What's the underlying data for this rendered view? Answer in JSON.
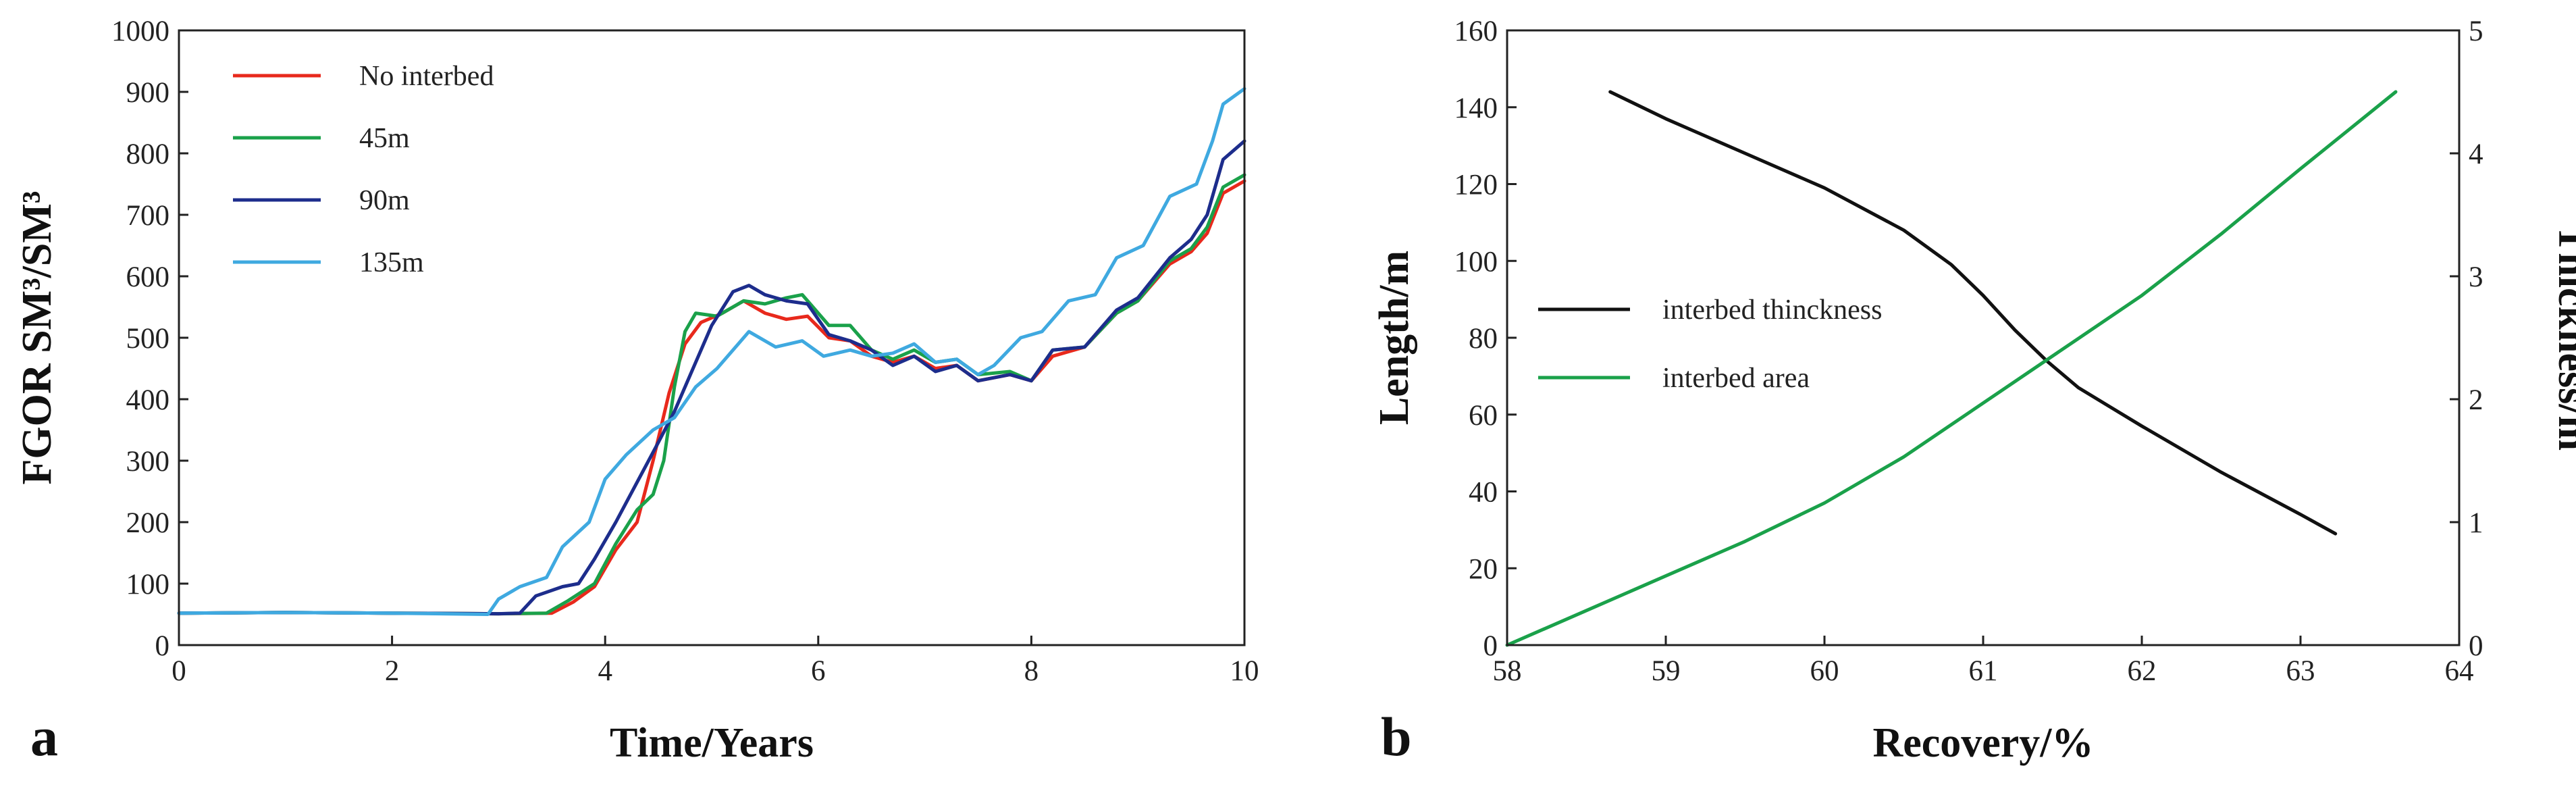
{
  "chart_data": [
    {
      "type": "line",
      "panel_label": "a",
      "xlabel": "Time/Years",
      "ylabel": "FGOR SM³/SM³",
      "xlim": [
        0,
        10
      ],
      "ylim": [
        0,
        1000
      ],
      "xticks": [
        "0",
        "2",
        "4",
        "6",
        "8",
        "10"
      ],
      "yticks": [
        "0",
        "100",
        "200",
        "300",
        "400",
        "500",
        "600",
        "700",
        "800",
        "900",
        "1000"
      ],
      "legend_position": "top-left",
      "series": [
        {
          "name": "No interbed",
          "color": "#e8291c",
          "points": [
            [
              0,
              52
            ],
            [
              1,
              53
            ],
            [
              2,
              52
            ],
            [
              3,
              51
            ],
            [
              3.5,
              52
            ],
            [
              3.7,
              70
            ],
            [
              3.9,
              95
            ],
            [
              4.1,
              155
            ],
            [
              4.3,
              200
            ],
            [
              4.45,
              300
            ],
            [
              4.6,
              410
            ],
            [
              4.75,
              490
            ],
            [
              4.9,
              525
            ],
            [
              5.1,
              540
            ],
            [
              5.3,
              560
            ],
            [
              5.5,
              540
            ],
            [
              5.7,
              530
            ],
            [
              5.9,
              535
            ],
            [
              6.1,
              500
            ],
            [
              6.3,
              495
            ],
            [
              6.5,
              470
            ],
            [
              6.7,
              460
            ],
            [
              6.9,
              470
            ],
            [
              7.1,
              450
            ],
            [
              7.3,
              455
            ],
            [
              7.5,
              430
            ],
            [
              7.8,
              440
            ],
            [
              8.0,
              430
            ],
            [
              8.2,
              470
            ],
            [
              8.5,
              485
            ],
            [
              8.8,
              540
            ],
            [
              9.0,
              560
            ],
            [
              9.3,
              620
            ],
            [
              9.5,
              640
            ],
            [
              9.65,
              670
            ],
            [
              9.8,
              735
            ],
            [
              10.0,
              755
            ]
          ]
        },
        {
          "name": "45m",
          "color": "#1aa14a",
          "points": [
            [
              0,
              52
            ],
            [
              1,
              53
            ],
            [
              2,
              52
            ],
            [
              3,
              51
            ],
            [
              3.45,
              52
            ],
            [
              3.65,
              72
            ],
            [
              3.9,
              100
            ],
            [
              4.1,
              165
            ],
            [
              4.3,
              220
            ],
            [
              4.45,
              245
            ],
            [
              4.55,
              300
            ],
            [
              4.65,
              420
            ],
            [
              4.75,
              510
            ],
            [
              4.85,
              540
            ],
            [
              5.05,
              535
            ],
            [
              5.3,
              560
            ],
            [
              5.5,
              555
            ],
            [
              5.7,
              565
            ],
            [
              5.85,
              570
            ],
            [
              6.1,
              520
            ],
            [
              6.3,
              520
            ],
            [
              6.5,
              480
            ],
            [
              6.7,
              465
            ],
            [
              6.9,
              480
            ],
            [
              7.1,
              460
            ],
            [
              7.3,
              465
            ],
            [
              7.5,
              440
            ],
            [
              7.8,
              445
            ],
            [
              8.0,
              430
            ],
            [
              8.2,
              480
            ],
            [
              8.5,
              485
            ],
            [
              8.8,
              540
            ],
            [
              9.0,
              560
            ],
            [
              9.3,
              625
            ],
            [
              9.5,
              645
            ],
            [
              9.65,
              680
            ],
            [
              9.8,
              745
            ],
            [
              10.0,
              765
            ]
          ]
        },
        {
          "name": "90m",
          "color": "#1d2d8c",
          "points": [
            [
              0,
              52
            ],
            [
              1,
              53
            ],
            [
              2,
              52
            ],
            [
              3,
              51
            ],
            [
              3.2,
              52
            ],
            [
              3.35,
              80
            ],
            [
              3.6,
              95
            ],
            [
              3.75,
              100
            ],
            [
              3.9,
              140
            ],
            [
              4.1,
              200
            ],
            [
              4.3,
              265
            ],
            [
              4.5,
              330
            ],
            [
              4.65,
              380
            ],
            [
              4.8,
              440
            ],
            [
              5.0,
              520
            ],
            [
              5.2,
              575
            ],
            [
              5.35,
              585
            ],
            [
              5.5,
              570
            ],
            [
              5.7,
              560
            ],
            [
              5.9,
              555
            ],
            [
              6.1,
              505
            ],
            [
              6.3,
              495
            ],
            [
              6.5,
              480
            ],
            [
              6.7,
              455
            ],
            [
              6.9,
              470
            ],
            [
              7.1,
              445
            ],
            [
              7.3,
              455
            ],
            [
              7.5,
              430
            ],
            [
              7.8,
              440
            ],
            [
              8.0,
              430
            ],
            [
              8.2,
              480
            ],
            [
              8.5,
              485
            ],
            [
              8.8,
              545
            ],
            [
              9.0,
              565
            ],
            [
              9.3,
              630
            ],
            [
              9.5,
              660
            ],
            [
              9.65,
              700
            ],
            [
              9.8,
              790
            ],
            [
              10.0,
              820
            ]
          ]
        },
        {
          "name": "135m",
          "color": "#3fa9e0",
          "points": [
            [
              0,
              52
            ],
            [
              1,
              53
            ],
            [
              2,
              52
            ],
            [
              2.9,
              50
            ],
            [
              3.0,
              75
            ],
            [
              3.2,
              95
            ],
            [
              3.45,
              110
            ],
            [
              3.6,
              160
            ],
            [
              3.85,
              200
            ],
            [
              4.0,
              270
            ],
            [
              4.2,
              310
            ],
            [
              4.45,
              350
            ],
            [
              4.65,
              370
            ],
            [
              4.85,
              420
            ],
            [
              5.05,
              450
            ],
            [
              5.35,
              510
            ],
            [
              5.6,
              485
            ],
            [
              5.85,
              495
            ],
            [
              6.05,
              470
            ],
            [
              6.3,
              480
            ],
            [
              6.5,
              470
            ],
            [
              6.7,
              475
            ],
            [
              6.9,
              490
            ],
            [
              7.1,
              460
            ],
            [
              7.3,
              465
            ],
            [
              7.5,
              440
            ],
            [
              7.65,
              455
            ],
            [
              7.9,
              500
            ],
            [
              8.1,
              510
            ],
            [
              8.35,
              560
            ],
            [
              8.6,
              570
            ],
            [
              8.8,
              630
            ],
            [
              9.05,
              650
            ],
            [
              9.3,
              730
            ],
            [
              9.55,
              750
            ],
            [
              9.7,
              820
            ],
            [
              9.8,
              880
            ],
            [
              10.0,
              905
            ]
          ]
        }
      ]
    },
    {
      "type": "line",
      "panel_label": "b",
      "xlabel": "Recovery/%",
      "ylabel_left": "Length/m",
      "ylabel_right": "Thickness/m",
      "xlim": [
        58,
        64
      ],
      "ylim_left": [
        0,
        160
      ],
      "ylim_right": [
        0,
        5
      ],
      "xticks": [
        "58",
        "59",
        "60",
        "61",
        "62",
        "63",
        "64"
      ],
      "yticks_left": [
        "0",
        "20",
        "40",
        "60",
        "80",
        "100",
        "120",
        "140",
        "160"
      ],
      "yticks_right": [
        "0",
        "1",
        "2",
        "3",
        "4",
        "5"
      ],
      "legend_position": "center-left",
      "series": [
        {
          "name": "interbed thinckness",
          "color": "#111111",
          "axis": "left",
          "points": [
            [
              58.65,
              144
            ],
            [
              59.0,
              137
            ],
            [
              59.5,
              128
            ],
            [
              60.0,
              119
            ],
            [
              60.5,
              108
            ],
            [
              60.8,
              99
            ],
            [
              61.0,
              91
            ],
            [
              61.2,
              82
            ],
            [
              61.4,
              74
            ],
            [
              61.6,
              67
            ],
            [
              61.8,
              62
            ],
            [
              62.0,
              57
            ],
            [
              62.5,
              45
            ],
            [
              63.0,
              34
            ],
            [
              63.22,
              29
            ]
          ]
        },
        {
          "name": "interbed area",
          "color": "#1aa14a",
          "axis": "left",
          "points": [
            [
              58.0,
              0
            ],
            [
              58.5,
              9
            ],
            [
              59.0,
              18
            ],
            [
              59.5,
              27
            ],
            [
              60.0,
              37
            ],
            [
              60.5,
              49
            ],
            [
              61.0,
              63
            ],
            [
              61.5,
              77
            ],
            [
              62.0,
              91
            ],
            [
              62.5,
              107
            ],
            [
              63.0,
              124
            ],
            [
              63.3,
              134
            ],
            [
              63.6,
              144
            ]
          ]
        }
      ]
    }
  ]
}
